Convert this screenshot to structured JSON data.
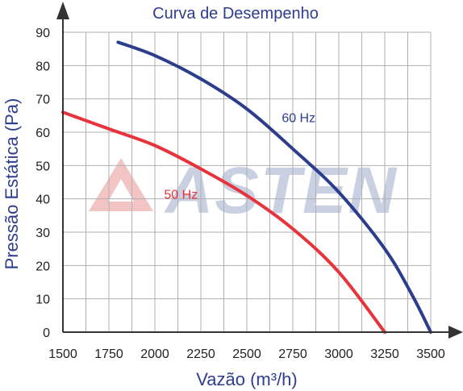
{
  "chart_data": {
    "type": "line",
    "title": "Curva de Desempenho",
    "xlabel": "Vazão (m³/h)",
    "ylabel": "Pressão Estática (Pa)",
    "xlim": [
      1500,
      3500
    ],
    "ylim": [
      0,
      90
    ],
    "xticks": [
      1500,
      1750,
      2000,
      2250,
      2500,
      2750,
      3000,
      3250,
      3500
    ],
    "yticks": [
      0,
      10,
      20,
      30,
      40,
      50,
      60,
      70,
      80,
      90
    ],
    "grid": true,
    "watermark": "ASTEN",
    "series": [
      {
        "name": "60 Hz",
        "color": "#2b3d8c",
        "points": [
          [
            1800,
            87
          ],
          [
            2000,
            83
          ],
          [
            2250,
            76
          ],
          [
            2500,
            67
          ],
          [
            2750,
            55
          ],
          [
            3000,
            42
          ],
          [
            3250,
            25
          ],
          [
            3400,
            11
          ],
          [
            3500,
            0
          ]
        ]
      },
      {
        "name": "50 Hz",
        "color": "#e8323c",
        "points": [
          [
            1500,
            66
          ],
          [
            1750,
            61
          ],
          [
            2000,
            56
          ],
          [
            2250,
            49
          ],
          [
            2500,
            41
          ],
          [
            2750,
            31
          ],
          [
            3000,
            18
          ],
          [
            3250,
            0
          ]
        ]
      }
    ]
  }
}
